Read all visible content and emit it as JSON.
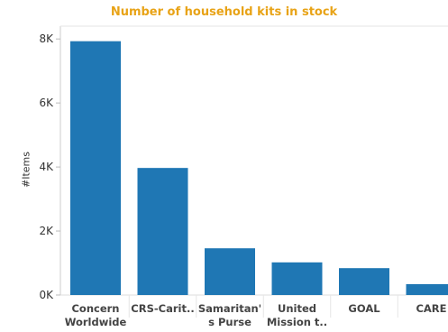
{
  "chart_data": {
    "type": "bar",
    "title": "Number of household kits in stock",
    "ylabel": "#Items",
    "xlabel": "",
    "categories": [
      [
        "Concern",
        "Worldwide"
      ],
      [
        "CRS-Carit.."
      ],
      [
        "Samaritan'",
        "s Purse"
      ],
      [
        "United",
        "Mission t.."
      ],
      [
        "GOAL"
      ],
      [
        "CARE"
      ]
    ],
    "values": [
      7930,
      3970,
      1460,
      1020,
      840,
      340
    ],
    "ylim": [
      0,
      8400
    ],
    "yticks": [
      0,
      2000,
      4000,
      6000,
      8000
    ],
    "ytick_labels": [
      "0K",
      "2K",
      "4K",
      "6K",
      "8K"
    ],
    "grid": false,
    "colors": {
      "bar": "#1f77b4",
      "title": "#e8a317"
    }
  }
}
